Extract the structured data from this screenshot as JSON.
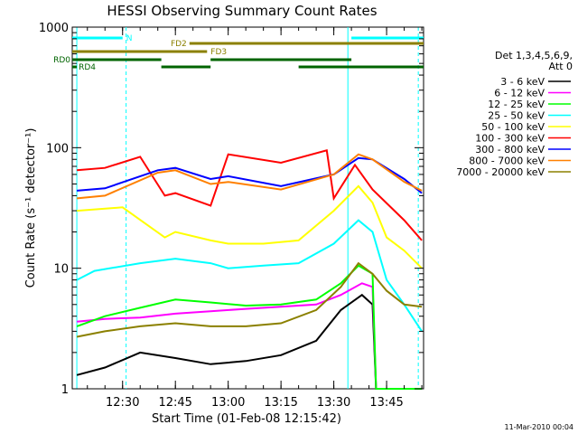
{
  "chart_data": {
    "type": "line",
    "title": "HESSI Observing Summary Count Rates",
    "xlabel": "Start Time (01-Feb-08 12:15:42)",
    "ylabel": "Count Rate (s⁻¹ detector⁻¹)",
    "yscale": "log",
    "xlim": [
      "12:15:42",
      "13:55:30"
    ],
    "ylim": [
      1,
      1000
    ],
    "x_ticks": [
      "12:30",
      "12:45",
      "13:00",
      "13:15",
      "13:30",
      "13:45"
    ],
    "y_ticks": [
      "1",
      "10",
      "100",
      "1000"
    ],
    "legend_title": [
      "Det 1,3,4,5,6,9,",
      "Att 0"
    ],
    "legend_position": "right",
    "footer": "11-Mar-2010 00:04",
    "series": [
      {
        "name": "3 - 6 keV",
        "color": "#000000",
        "values": [
          {
            "x": "12:17",
            "y": 1.3
          },
          {
            "x": "12:25",
            "y": 1.5
          },
          {
            "x": "12:35",
            "y": 2.0
          },
          {
            "x": "12:45",
            "y": 1.8
          },
          {
            "x": "12:55",
            "y": 1.6
          },
          {
            "x": "13:05",
            "y": 1.7
          },
          {
            "x": "13:15",
            "y": 1.9
          },
          {
            "x": "13:25",
            "y": 2.5
          },
          {
            "x": "13:32",
            "y": 4.5
          },
          {
            "x": "13:38",
            "y": 6.0
          },
          {
            "x": "13:41",
            "y": 5.0
          },
          {
            "x": "13:42",
            "y": 1.0
          },
          {
            "x": "13:55",
            "y": 1.0
          }
        ]
      },
      {
        "name": "6 - 12 keV",
        "color": "#ff00ff",
        "values": [
          {
            "x": "12:17",
            "y": 3.6
          },
          {
            "x": "12:25",
            "y": 3.8
          },
          {
            "x": "12:35",
            "y": 3.9
          },
          {
            "x": "12:45",
            "y": 4.2
          },
          {
            "x": "12:55",
            "y": 4.4
          },
          {
            "x": "13:05",
            "y": 4.6
          },
          {
            "x": "13:15",
            "y": 4.8
          },
          {
            "x": "13:25",
            "y": 5.0
          },
          {
            "x": "13:32",
            "y": 6.0
          },
          {
            "x": "13:38",
            "y": 7.5
          },
          {
            "x": "13:41",
            "y": 7.0
          },
          {
            "x": "13:42",
            "y": 1.0
          },
          {
            "x": "13:55",
            "y": 1.0
          }
        ]
      },
      {
        "name": "12 - 25 keV",
        "color": "#00ff00",
        "values": [
          {
            "x": "12:17",
            "y": 3.3
          },
          {
            "x": "12:25",
            "y": 4.0
          },
          {
            "x": "12:35",
            "y": 4.7
          },
          {
            "x": "12:45",
            "y": 5.5
          },
          {
            "x": "12:55",
            "y": 5.2
          },
          {
            "x": "13:05",
            "y": 4.9
          },
          {
            "x": "13:15",
            "y": 5.0
          },
          {
            "x": "13:25",
            "y": 5.5
          },
          {
            "x": "13:32",
            "y": 7.5
          },
          {
            "x": "13:37",
            "y": 10.5
          },
          {
            "x": "13:41",
            "y": 9.0
          },
          {
            "x": "13:42",
            "y": 1.0
          },
          {
            "x": "13:55",
            "y": 1.0
          }
        ]
      },
      {
        "name": "25 - 50 keV",
        "color": "#00ffff",
        "values": [
          {
            "x": "12:17",
            "y": 8.0
          },
          {
            "x": "12:22",
            "y": 9.5
          },
          {
            "x": "12:35",
            "y": 11.0
          },
          {
            "x": "12:45",
            "y": 12.0
          },
          {
            "x": "12:55",
            "y": 11.0
          },
          {
            "x": "13:00",
            "y": 10.0
          },
          {
            "x": "13:10",
            "y": 10.5
          },
          {
            "x": "13:20",
            "y": 11.0
          },
          {
            "x": "13:30",
            "y": 16.0
          },
          {
            "x": "13:37",
            "y": 25.0
          },
          {
            "x": "13:41",
            "y": 20.0
          },
          {
            "x": "13:45",
            "y": 8.0
          },
          {
            "x": "13:50",
            "y": 5.0
          },
          {
            "x": "13:55",
            "y": 3.0
          }
        ]
      },
      {
        "name": "50 - 100 keV",
        "color": "#ffff00",
        "values": [
          {
            "x": "12:17",
            "y": 30.0
          },
          {
            "x": "12:30",
            "y": 32.0
          },
          {
            "x": "12:42",
            "y": 18.0
          },
          {
            "x": "12:45",
            "y": 20.0
          },
          {
            "x": "12:55",
            "y": 17.0
          },
          {
            "x": "13:00",
            "y": 16.0
          },
          {
            "x": "13:10",
            "y": 16.0
          },
          {
            "x": "13:20",
            "y": 17.0
          },
          {
            "x": "13:30",
            "y": 30.0
          },
          {
            "x": "13:37",
            "y": 48.0
          },
          {
            "x": "13:41",
            "y": 35.0
          },
          {
            "x": "13:45",
            "y": 18.0
          },
          {
            "x": "13:50",
            "y": 14.0
          },
          {
            "x": "13:55",
            "y": 10.0
          }
        ]
      },
      {
        "name": "100 - 300 keV",
        "color": "#ff0000",
        "values": [
          {
            "x": "12:17",
            "y": 65.0
          },
          {
            "x": "12:25",
            "y": 68.0
          },
          {
            "x": "12:35",
            "y": 84.0
          },
          {
            "x": "12:42",
            "y": 40.0
          },
          {
            "x": "12:45",
            "y": 42.0
          },
          {
            "x": "12:55",
            "y": 33.0
          },
          {
            "x": "13:00",
            "y": 88.0
          },
          {
            "x": "13:15",
            "y": 75.0
          },
          {
            "x": "13:28",
            "y": 95.0
          },
          {
            "x": "13:30",
            "y": 38.0
          },
          {
            "x": "13:36",
            "y": 72.0
          },
          {
            "x": "13:41",
            "y": 45.0
          },
          {
            "x": "13:50",
            "y": 25.0
          },
          {
            "x": "13:55",
            "y": 17.0
          }
        ]
      },
      {
        "name": "300 - 800 keV",
        "color": "#0000ff",
        "values": [
          {
            "x": "12:17",
            "y": 44.0
          },
          {
            "x": "12:25",
            "y": 46.0
          },
          {
            "x": "12:40",
            "y": 65.0
          },
          {
            "x": "12:45",
            "y": 68.0
          },
          {
            "x": "12:55",
            "y": 55.0
          },
          {
            "x": "13:00",
            "y": 58.0
          },
          {
            "x": "13:15",
            "y": 48.0
          },
          {
            "x": "13:30",
            "y": 60.0
          },
          {
            "x": "13:37",
            "y": 82.0
          },
          {
            "x": "13:41",
            "y": 80.0
          },
          {
            "x": "13:50",
            "y": 55.0
          },
          {
            "x": "13:55",
            "y": 42.0
          }
        ]
      },
      {
        "name": "800 - 7000 keV",
        "color": "#ff8000",
        "values": [
          {
            "x": "12:17",
            "y": 38.0
          },
          {
            "x": "12:25",
            "y": 40.0
          },
          {
            "x": "12:40",
            "y": 62.0
          },
          {
            "x": "12:45",
            "y": 65.0
          },
          {
            "x": "12:55",
            "y": 50.0
          },
          {
            "x": "13:00",
            "y": 52.0
          },
          {
            "x": "13:15",
            "y": 45.0
          },
          {
            "x": "13:30",
            "y": 60.0
          },
          {
            "x": "13:37",
            "y": 88.0
          },
          {
            "x": "13:41",
            "y": 80.0
          },
          {
            "x": "13:50",
            "y": 52.0
          },
          {
            "x": "13:55",
            "y": 44.0
          }
        ]
      },
      {
        "name": "7000 - 20000 keV",
        "color": "#8b8000",
        "values": [
          {
            "x": "12:17",
            "y": 2.7
          },
          {
            "x": "12:25",
            "y": 3.0
          },
          {
            "x": "12:35",
            "y": 3.3
          },
          {
            "x": "12:45",
            "y": 3.5
          },
          {
            "x": "12:55",
            "y": 3.3
          },
          {
            "x": "13:05",
            "y": 3.3
          },
          {
            "x": "13:15",
            "y": 3.5
          },
          {
            "x": "13:25",
            "y": 4.5
          },
          {
            "x": "13:32",
            "y": 7.0
          },
          {
            "x": "13:37",
            "y": 11.0
          },
          {
            "x": "13:41",
            "y": 9.0
          },
          {
            "x": "13:45",
            "y": 6.5
          },
          {
            "x": "13:50",
            "y": 5.0
          },
          {
            "x": "13:55",
            "y": 4.8
          }
        ]
      }
    ],
    "flags": [
      {
        "name": "N",
        "color": "#00ffff",
        "segments": [
          [
            "12:15:42",
            "12:30"
          ],
          [
            "13:35",
            "13:55:30"
          ]
        ]
      },
      {
        "name": "FD2",
        "color": "#8b8000",
        "segments": [
          [
            "12:49",
            "13:55:30"
          ]
        ]
      },
      {
        "name": "FD3",
        "color": "#8b8000",
        "segments": [
          [
            "12:15:42",
            "12:54"
          ]
        ]
      },
      {
        "name": "RD0",
        "color": "#006400",
        "segments": [
          [
            "12:15:42",
            "12:41"
          ],
          [
            "12:55",
            "13:35"
          ]
        ]
      },
      {
        "name": "RD4",
        "color": "#006400",
        "segments": [
          [
            "12:15:42",
            "12:17"
          ],
          [
            "12:41",
            "12:55"
          ],
          [
            "13:20",
            "13:55:30"
          ]
        ]
      }
    ],
    "markers": [
      {
        "x": "12:17",
        "color": "#00ffff",
        "style": "solid"
      },
      {
        "x": "12:31",
        "color": "#00ffff",
        "style": "dashed"
      },
      {
        "x": "13:34",
        "color": "#00ffff",
        "style": "solid"
      },
      {
        "x": "13:54",
        "color": "#00ffff",
        "style": "dashed"
      }
    ]
  }
}
